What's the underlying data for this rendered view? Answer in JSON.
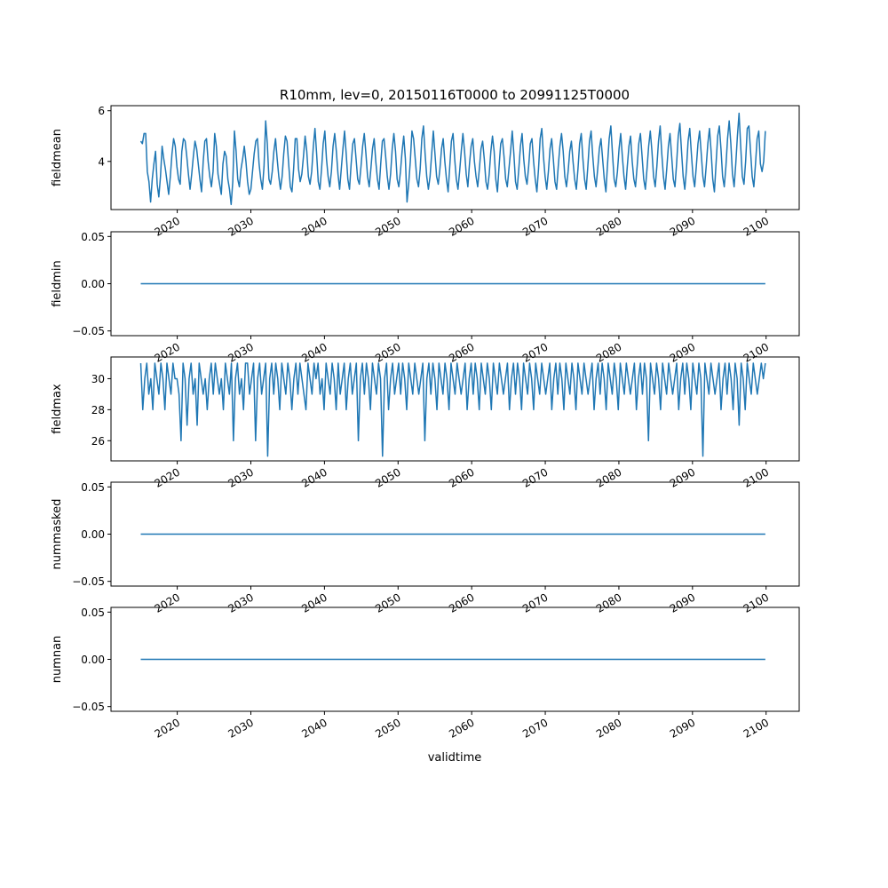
{
  "figure": {
    "title": "R10mm, lev=0, 20150116T0000 to 20991125T0000",
    "xlabel": "validtime",
    "line_color": "#1f77b4"
  },
  "chart_data": [
    {
      "type": "line",
      "ylabel": "fieldmean",
      "xlim": [
        "2011-01-01",
        "2104-07-01"
      ],
      "ylim": [
        2.1,
        6.2
      ],
      "yticks": [
        "4",
        "6"
      ],
      "xticks": [
        "2020",
        "2030",
        "2040",
        "2050",
        "2060",
        "2070",
        "2080",
        "2090",
        "2100"
      ],
      "series": [
        {
          "x_start": "2015-01-16",
          "x_end": "2099-11-25",
          "values": [
            4.8,
            4.7,
            5.1,
            5.1,
            3.6,
            3.2,
            2.4,
            3.3,
            3.9,
            4.4,
            3.1,
            2.6,
            3.4,
            4.6,
            4.1,
            3.7,
            3.2,
            2.7,
            3.4,
            4.3,
            4.9,
            4.6,
            3.8,
            3.3,
            3.1,
            4.4,
            4.9,
            4.8,
            4.2,
            3.5,
            2.9,
            3.5,
            4.2,
            4.8,
            4.5,
            3.9,
            3.3,
            2.8,
            4.0,
            4.8,
            4.9,
            4.0,
            3.4,
            3.0,
            3.6,
            5.1,
            4.6,
            3.5,
            3.1,
            2.7,
            3.9,
            4.4,
            4.2,
            3.3,
            2.9,
            2.3,
            3.2,
            5.2,
            4.4,
            3.3,
            3.0,
            3.7,
            4.1,
            4.6,
            4.0,
            3.2,
            2.7,
            2.9,
            3.6,
            4.3,
            4.8,
            4.9,
            3.9,
            3.3,
            2.9,
            3.8,
            5.6,
            4.7,
            3.3,
            3.1,
            3.6,
            4.4,
            4.9,
            4.1,
            3.4,
            2.9,
            3.4,
            4.3,
            5.0,
            4.8,
            3.9,
            3.0,
            2.8,
            3.7,
            4.9,
            4.9,
            3.7,
            3.2,
            3.5,
            4.2,
            5.0,
            4.4,
            3.4,
            3.1,
            3.6,
            4.6,
            5.3,
            4.3,
            3.2,
            2.9,
            3.7,
            4.7,
            5.2,
            4.1,
            3.4,
            3.0,
            3.6,
            4.6,
            5.1,
            4.4,
            3.5,
            2.9,
            3.7,
            4.5,
            5.2,
            4.3,
            3.3,
            2.9,
            3.9,
            4.7,
            4.9,
            4.1,
            3.3,
            3.1,
            3.8,
            4.6,
            5.1,
            4.3,
            3.4,
            3.0,
            3.7,
            4.5,
            4.9,
            4.0,
            3.3,
            2.9,
            3.9,
            4.8,
            4.9,
            4.2,
            3.4,
            2.9,
            3.5,
            4.5,
            5.1,
            4.4,
            3.3,
            3.0,
            3.6,
            4.4,
            5.0,
            4.1,
            2.4,
            3.1,
            4.0,
            5.2,
            4.9,
            4.1,
            3.3,
            3.0,
            3.7,
            4.9,
            5.4,
            4.3,
            3.4,
            2.9,
            3.4,
            4.3,
            5.2,
            4.3,
            3.4,
            3.1,
            3.7,
            4.5,
            4.9,
            4.0,
            3.3,
            2.8,
            3.8,
            4.8,
            5.1,
            4.1,
            3.3,
            2.9,
            3.6,
            4.4,
            5.1,
            4.4,
            3.5,
            3.0,
            3.9,
            4.6,
            4.9,
            4.0,
            3.4,
            3.0,
            3.7,
            4.5,
            4.8,
            4.1,
            3.2,
            2.9,
            3.5,
            4.4,
            5.0,
            4.4,
            3.3,
            2.8,
            3.8,
            4.7,
            4.9,
            4.2,
            3.3,
            3.0,
            3.7,
            4.4,
            5.2,
            4.3,
            3.2,
            2.9,
            3.7,
            4.6,
            5.1,
            4.1,
            3.4,
            3.1,
            3.8,
            4.7,
            4.9,
            4.0,
            3.3,
            2.8,
            3.7,
            4.9,
            5.3,
            4.2,
            3.4,
            2.9,
            3.6,
            4.5,
            4.9,
            4.1,
            3.2,
            2.9,
            3.8,
            4.6,
            5.1,
            4.4,
            3.4,
            3.0,
            3.6,
            4.4,
            4.8,
            4.0,
            3.3,
            2.9,
            3.7,
            4.7,
            5.1,
            4.1,
            3.3,
            2.9,
            3.8,
            4.8,
            5.2,
            4.2,
            3.4,
            3.0,
            3.7,
            4.5,
            4.9,
            4.1,
            3.3,
            2.8,
            3.9,
            4.9,
            5.4,
            4.3,
            3.3,
            3.0,
            3.6,
            4.5,
            5.1,
            4.2,
            3.4,
            2.9,
            3.8,
            4.6,
            5.0,
            4.0,
            3.3,
            3.0,
            3.8,
            4.7,
            5.1,
            4.2,
            3.3,
            2.9,
            3.7,
            4.6,
            5.2,
            4.4,
            3.4,
            3.0,
            3.8,
            4.8,
            5.4,
            4.3,
            3.4,
            2.9,
            3.7,
            4.6,
            5.1,
            4.2,
            3.3,
            3.0,
            3.9,
            5.0,
            5.5,
            4.4,
            3.4,
            2.9,
            3.7,
            4.8,
            5.3,
            4.3,
            3.4,
            3.0,
            3.8,
            4.7,
            5.2,
            4.3,
            3.4,
            3.0,
            3.8,
            4.7,
            5.3,
            4.4,
            3.3,
            2.8,
            3.9,
            5.0,
            5.4,
            4.5,
            3.4,
            3.0,
            3.8,
            4.9,
            5.6,
            4.7,
            3.5,
            3.0,
            3.9,
            5.0,
            5.9,
            4.6,
            3.4,
            3.1,
            4.0,
            5.3,
            5.4,
            4.4,
            3.4,
            3.0,
            3.9,
            4.9,
            5.2,
            3.9,
            3.6,
            4.0,
            5.2
          ]
        }
      ]
    },
    {
      "type": "line",
      "ylabel": "fieldmin",
      "xlim": [
        "2011-01-01",
        "2104-07-01"
      ],
      "ylim": [
        -0.055,
        0.055
      ],
      "yticks": [
        "0.05",
        "0.00",
        "−0.05"
      ],
      "xticks": [
        "2020",
        "2030",
        "2040",
        "2050",
        "2060",
        "2070",
        "2080",
        "2090",
        "2100"
      ],
      "series": [
        {
          "x_start": "2015-01-16",
          "x_end": "2099-11-25",
          "values": [
            0,
            0
          ]
        }
      ]
    },
    {
      "type": "line",
      "ylabel": "fieldmax",
      "xlim": [
        "2011-01-01",
        "2104-07-01"
      ],
      "ylim": [
        24.7,
        31.4
      ],
      "yticks": [
        "26",
        "28",
        "30"
      ],
      "xticks": [
        "2020",
        "2030",
        "2040",
        "2050",
        "2060",
        "2070",
        "2080",
        "2090",
        "2100"
      ],
      "series": [
        {
          "x_start": "2015-01-16",
          "x_end": "2099-11-25",
          "values": [
            31,
            28,
            30,
            31,
            29,
            30,
            28,
            31,
            30,
            29,
            31,
            30,
            28,
            31,
            30,
            29,
            31,
            30,
            30,
            29,
            26,
            31,
            30,
            27,
            30,
            31,
            29,
            30,
            27,
            31,
            30,
            29,
            30,
            28,
            30,
            31,
            29,
            31,
            30,
            29,
            30,
            28,
            31,
            30,
            29,
            31,
            26,
            30,
            31,
            29,
            30,
            28,
            31,
            31,
            29,
            30,
            31,
            26,
            30,
            31,
            29,
            30,
            31,
            25,
            30,
            31,
            29,
            31,
            30,
            28,
            31,
            30,
            29,
            31,
            30,
            28,
            30,
            31,
            29,
            31,
            30,
            29,
            28,
            31,
            30,
            29,
            31,
            30,
            31,
            29,
            30,
            28,
            31,
            30,
            29,
            31,
            30,
            28,
            31,
            29,
            30,
            31,
            28,
            30,
            31,
            29,
            30,
            31,
            26,
            30,
            31,
            29,
            31,
            30,
            28,
            31,
            30,
            29,
            31,
            30,
            25,
            30,
            31,
            28,
            30,
            31,
            29,
            30,
            31,
            29,
            31,
            30,
            28,
            31,
            30,
            29,
            31,
            30,
            29,
            30,
            31,
            26,
            30,
            31,
            29,
            31,
            30,
            28,
            31,
            30,
            29,
            31,
            30,
            28,
            31,
            30,
            29,
            31,
            30,
            29,
            30,
            31,
            28,
            30,
            31,
            29,
            31,
            30,
            28,
            31,
            30,
            29,
            31,
            30,
            28,
            31,
            30,
            29,
            31,
            30,
            29,
            30,
            31,
            28,
            30,
            31,
            29,
            31,
            30,
            28,
            31,
            30,
            29,
            31,
            30,
            28,
            31,
            30,
            29,
            31,
            30,
            29,
            30,
            31,
            28,
            30,
            31,
            29,
            31,
            30,
            28,
            31,
            30,
            29,
            31,
            30,
            28,
            31,
            30,
            29,
            31,
            30,
            29,
            30,
            31,
            28,
            30,
            31,
            29,
            31,
            30,
            28,
            31,
            30,
            29,
            31,
            30,
            28,
            31,
            30,
            29,
            31,
            30,
            29,
            30,
            31,
            28,
            30,
            31,
            29,
            31,
            30,
            26,
            31,
            30,
            29,
            31,
            30,
            28,
            31,
            30,
            29,
            31,
            30,
            29,
            30,
            31,
            28,
            30,
            31,
            29,
            31,
            30,
            28,
            31,
            30,
            29,
            31,
            30,
            25,
            31,
            30,
            29,
            31,
            30,
            29,
            30,
            31,
            28,
            30,
            31,
            29,
            31,
            30,
            28,
            31,
            30,
            27,
            31,
            30,
            28,
            31,
            30,
            29,
            31,
            30,
            29,
            30,
            31,
            30,
            31
          ]
        }
      ]
    },
    {
      "type": "line",
      "ylabel": "nummasked",
      "xlim": [
        "2011-01-01",
        "2104-07-01"
      ],
      "ylim": [
        -0.055,
        0.055
      ],
      "yticks": [
        "0.05",
        "0.00",
        "−0.05"
      ],
      "xticks": [
        "2020",
        "2030",
        "2040",
        "2050",
        "2060",
        "2070",
        "2080",
        "2090",
        "2100"
      ],
      "series": [
        {
          "x_start": "2015-01-16",
          "x_end": "2099-11-25",
          "values": [
            0,
            0
          ]
        }
      ]
    },
    {
      "type": "line",
      "ylabel": "numnan",
      "xlim": [
        "2011-01-01",
        "2104-07-01"
      ],
      "ylim": [
        -0.055,
        0.055
      ],
      "yticks": [
        "0.05",
        "0.00",
        "−0.05"
      ],
      "xticks": [
        "2020",
        "2030",
        "2040",
        "2050",
        "2060",
        "2070",
        "2080",
        "2090",
        "2100"
      ],
      "series": [
        {
          "x_start": "2015-01-16",
          "x_end": "2099-11-25",
          "values": [
            0,
            0
          ]
        }
      ]
    }
  ]
}
